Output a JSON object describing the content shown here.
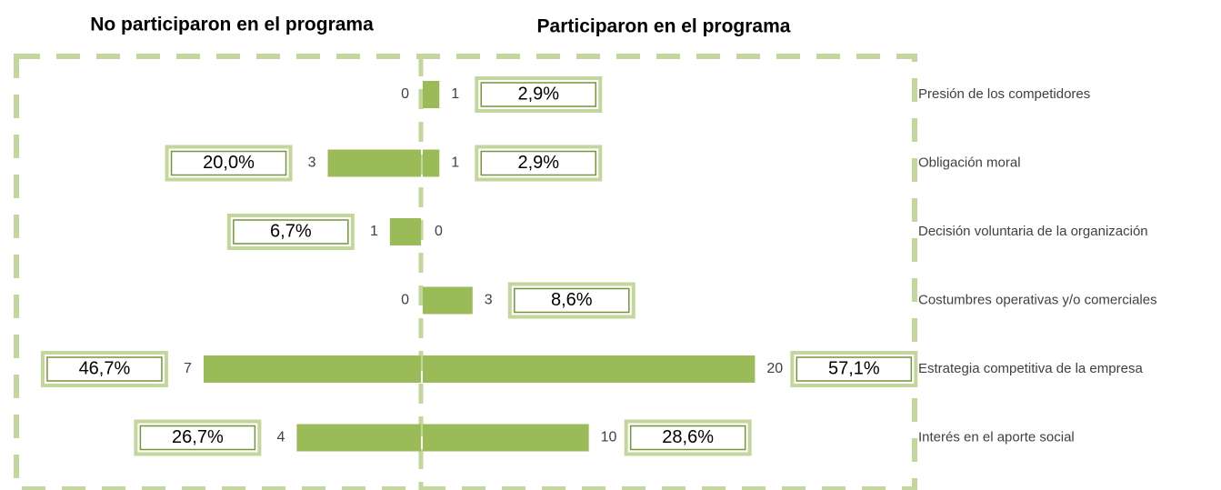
{
  "chart_data": {
    "type": "butterfly_bar",
    "categories": [
      "Presión de los competidores",
      "Obligación moral",
      "Decisión voluntaria de la organización",
      "Costumbres operativas y/o comerciales",
      "Estrategia competitiva de la empresa",
      "Interés en el aporte social"
    ],
    "series": [
      {
        "name": "No participaron en el programa",
        "color": "#9bbb59",
        "side": "left",
        "xlim": [
          0,
          13
        ],
        "values": [
          0,
          3,
          1,
          0,
          7,
          4
        ],
        "shares": [
          null,
          20.0,
          6.7,
          null,
          46.7,
          26.7
        ],
        "share_labels": [
          null,
          "20,0%",
          "6,7%",
          null,
          "46,7%",
          "26,7%"
        ]
      },
      {
        "name": "Participaron en el programa",
        "color": "#9bbb59",
        "side": "right",
        "xlim": [
          0,
          30
        ],
        "values": [
          1,
          1,
          0,
          3,
          20,
          10
        ],
        "shares": [
          2.9,
          2.9,
          null,
          8.6,
          57.1,
          28.6
        ],
        "share_labels": [
          "2,9%",
          "2,9%",
          null,
          "8,6%",
          "57,1%",
          "28,6%"
        ]
      }
    ]
  }
}
